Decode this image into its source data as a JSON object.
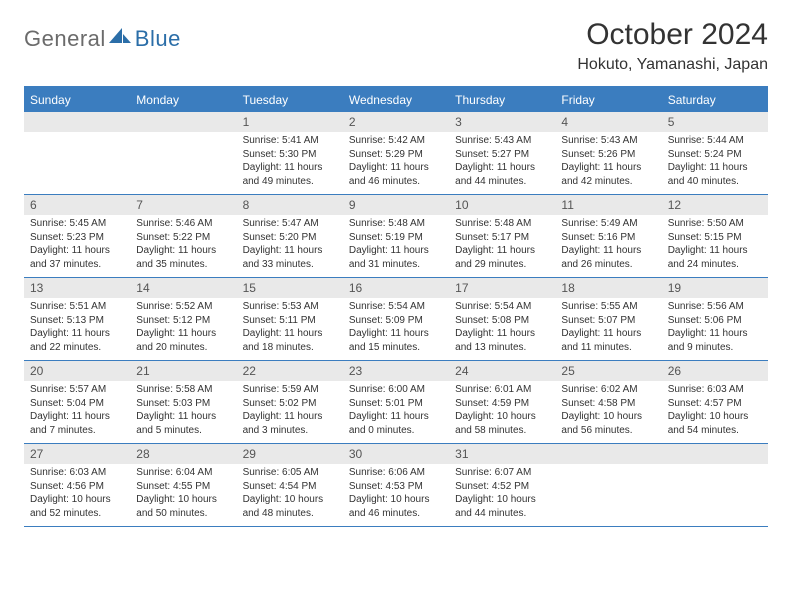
{
  "header": {
    "logo_general": "General",
    "logo_blue": "Blue",
    "month_title": "October 2024",
    "location": "Hokuto, Yamanashi, Japan"
  },
  "calendar": {
    "header_bg": "#3b7dbf",
    "header_fg": "#ffffff",
    "daynum_bg": "#e9e9e9",
    "border_color": "#3b7dbf",
    "days_of_week": [
      "Sunday",
      "Monday",
      "Tuesday",
      "Wednesday",
      "Thursday",
      "Friday",
      "Saturday"
    ],
    "weeks": [
      [
        {
          "n": "",
          "sr": "",
          "ss": "",
          "dl": ""
        },
        {
          "n": "",
          "sr": "",
          "ss": "",
          "dl": ""
        },
        {
          "n": "1",
          "sr": "Sunrise: 5:41 AM",
          "ss": "Sunset: 5:30 PM",
          "dl": "Daylight: 11 hours and 49 minutes."
        },
        {
          "n": "2",
          "sr": "Sunrise: 5:42 AM",
          "ss": "Sunset: 5:29 PM",
          "dl": "Daylight: 11 hours and 46 minutes."
        },
        {
          "n": "3",
          "sr": "Sunrise: 5:43 AM",
          "ss": "Sunset: 5:27 PM",
          "dl": "Daylight: 11 hours and 44 minutes."
        },
        {
          "n": "4",
          "sr": "Sunrise: 5:43 AM",
          "ss": "Sunset: 5:26 PM",
          "dl": "Daylight: 11 hours and 42 minutes."
        },
        {
          "n": "5",
          "sr": "Sunrise: 5:44 AM",
          "ss": "Sunset: 5:24 PM",
          "dl": "Daylight: 11 hours and 40 minutes."
        }
      ],
      [
        {
          "n": "6",
          "sr": "Sunrise: 5:45 AM",
          "ss": "Sunset: 5:23 PM",
          "dl": "Daylight: 11 hours and 37 minutes."
        },
        {
          "n": "7",
          "sr": "Sunrise: 5:46 AM",
          "ss": "Sunset: 5:22 PM",
          "dl": "Daylight: 11 hours and 35 minutes."
        },
        {
          "n": "8",
          "sr": "Sunrise: 5:47 AM",
          "ss": "Sunset: 5:20 PM",
          "dl": "Daylight: 11 hours and 33 minutes."
        },
        {
          "n": "9",
          "sr": "Sunrise: 5:48 AM",
          "ss": "Sunset: 5:19 PM",
          "dl": "Daylight: 11 hours and 31 minutes."
        },
        {
          "n": "10",
          "sr": "Sunrise: 5:48 AM",
          "ss": "Sunset: 5:17 PM",
          "dl": "Daylight: 11 hours and 29 minutes."
        },
        {
          "n": "11",
          "sr": "Sunrise: 5:49 AM",
          "ss": "Sunset: 5:16 PM",
          "dl": "Daylight: 11 hours and 26 minutes."
        },
        {
          "n": "12",
          "sr": "Sunrise: 5:50 AM",
          "ss": "Sunset: 5:15 PM",
          "dl": "Daylight: 11 hours and 24 minutes."
        }
      ],
      [
        {
          "n": "13",
          "sr": "Sunrise: 5:51 AM",
          "ss": "Sunset: 5:13 PM",
          "dl": "Daylight: 11 hours and 22 minutes."
        },
        {
          "n": "14",
          "sr": "Sunrise: 5:52 AM",
          "ss": "Sunset: 5:12 PM",
          "dl": "Daylight: 11 hours and 20 minutes."
        },
        {
          "n": "15",
          "sr": "Sunrise: 5:53 AM",
          "ss": "Sunset: 5:11 PM",
          "dl": "Daylight: 11 hours and 18 minutes."
        },
        {
          "n": "16",
          "sr": "Sunrise: 5:54 AM",
          "ss": "Sunset: 5:09 PM",
          "dl": "Daylight: 11 hours and 15 minutes."
        },
        {
          "n": "17",
          "sr": "Sunrise: 5:54 AM",
          "ss": "Sunset: 5:08 PM",
          "dl": "Daylight: 11 hours and 13 minutes."
        },
        {
          "n": "18",
          "sr": "Sunrise: 5:55 AM",
          "ss": "Sunset: 5:07 PM",
          "dl": "Daylight: 11 hours and 11 minutes."
        },
        {
          "n": "19",
          "sr": "Sunrise: 5:56 AM",
          "ss": "Sunset: 5:06 PM",
          "dl": "Daylight: 11 hours and 9 minutes."
        }
      ],
      [
        {
          "n": "20",
          "sr": "Sunrise: 5:57 AM",
          "ss": "Sunset: 5:04 PM",
          "dl": "Daylight: 11 hours and 7 minutes."
        },
        {
          "n": "21",
          "sr": "Sunrise: 5:58 AM",
          "ss": "Sunset: 5:03 PM",
          "dl": "Daylight: 11 hours and 5 minutes."
        },
        {
          "n": "22",
          "sr": "Sunrise: 5:59 AM",
          "ss": "Sunset: 5:02 PM",
          "dl": "Daylight: 11 hours and 3 minutes."
        },
        {
          "n": "23",
          "sr": "Sunrise: 6:00 AM",
          "ss": "Sunset: 5:01 PM",
          "dl": "Daylight: 11 hours and 0 minutes."
        },
        {
          "n": "24",
          "sr": "Sunrise: 6:01 AM",
          "ss": "Sunset: 4:59 PM",
          "dl": "Daylight: 10 hours and 58 minutes."
        },
        {
          "n": "25",
          "sr": "Sunrise: 6:02 AM",
          "ss": "Sunset: 4:58 PM",
          "dl": "Daylight: 10 hours and 56 minutes."
        },
        {
          "n": "26",
          "sr": "Sunrise: 6:03 AM",
          "ss": "Sunset: 4:57 PM",
          "dl": "Daylight: 10 hours and 54 minutes."
        }
      ],
      [
        {
          "n": "27",
          "sr": "Sunrise: 6:03 AM",
          "ss": "Sunset: 4:56 PM",
          "dl": "Daylight: 10 hours and 52 minutes."
        },
        {
          "n": "28",
          "sr": "Sunrise: 6:04 AM",
          "ss": "Sunset: 4:55 PM",
          "dl": "Daylight: 10 hours and 50 minutes."
        },
        {
          "n": "29",
          "sr": "Sunrise: 6:05 AM",
          "ss": "Sunset: 4:54 PM",
          "dl": "Daylight: 10 hours and 48 minutes."
        },
        {
          "n": "30",
          "sr": "Sunrise: 6:06 AM",
          "ss": "Sunset: 4:53 PM",
          "dl": "Daylight: 10 hours and 46 minutes."
        },
        {
          "n": "31",
          "sr": "Sunrise: 6:07 AM",
          "ss": "Sunset: 4:52 PM",
          "dl": "Daylight: 10 hours and 44 minutes."
        },
        {
          "n": "",
          "sr": "",
          "ss": "",
          "dl": ""
        },
        {
          "n": "",
          "sr": "",
          "ss": "",
          "dl": ""
        }
      ]
    ]
  }
}
